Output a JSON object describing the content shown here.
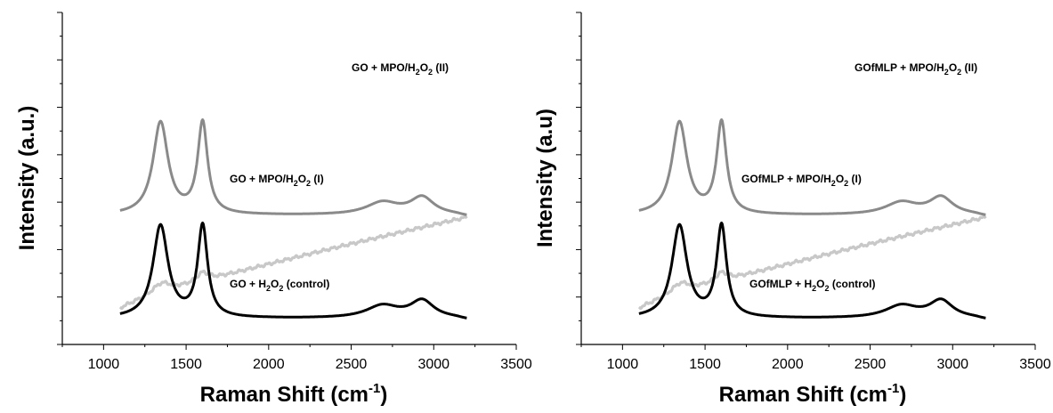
{
  "chart_data": [
    {
      "type": "line",
      "xlabel": "Raman Shift (cm-1)",
      "xlabel_main": "Raman Shift (cm",
      "xlabel_sup": "-1",
      "xlabel_close": ")",
      "ylabel": "Intensity (a.u.)",
      "xlim": [
        750,
        3500
      ],
      "x_ticks": [
        "1000",
        "1500",
        "2000",
        "2500",
        "3000",
        "3500"
      ],
      "y_ticks_labeled": false,
      "series": [
        {
          "label_parts": [
            "GO + MPO/H",
            "2",
            "O",
            "2",
            "  (II)"
          ],
          "color": "#c8c8c8",
          "style": "ramp"
        },
        {
          "label_parts": [
            "GO + MPO/H",
            "2",
            "O",
            "2",
            " (I)"
          ],
          "color": "#8a8a8a",
          "style": "peaks"
        },
        {
          "label_parts": [
            "GO + H",
            "2",
            "O",
            "2",
            " (control)"
          ],
          "color": "#000000",
          "style": "peaks"
        }
      ]
    },
    {
      "type": "line",
      "xlabel": "Raman Shift (cm-1)",
      "xlabel_main": "Raman Shift (cm",
      "xlabel_sup": "-1",
      "xlabel_close": ")",
      "ylabel": "Intensity (a.u)",
      "xlim": [
        750,
        3500
      ],
      "x_ticks": [
        "1000",
        "1500",
        "2000",
        "2500",
        "3000",
        "3500"
      ],
      "y_ticks_labeled": false,
      "series": [
        {
          "label_parts": [
            "GOfMLP + MPO/H",
            "2",
            "O",
            "2",
            "  (II)"
          ],
          "color": "#c8c8c8",
          "style": "ramp"
        },
        {
          "label_parts": [
            "GOfMLP + MPO/H",
            "2",
            "O",
            "2",
            " (I)"
          ],
          "color": "#8a8a8a",
          "style": "peaks"
        },
        {
          "label_parts": [
            "GOfMLP + H",
            "2",
            "O",
            "2",
            " (control)"
          ],
          "color": "#000000",
          "style": "peaks"
        }
      ]
    }
  ]
}
